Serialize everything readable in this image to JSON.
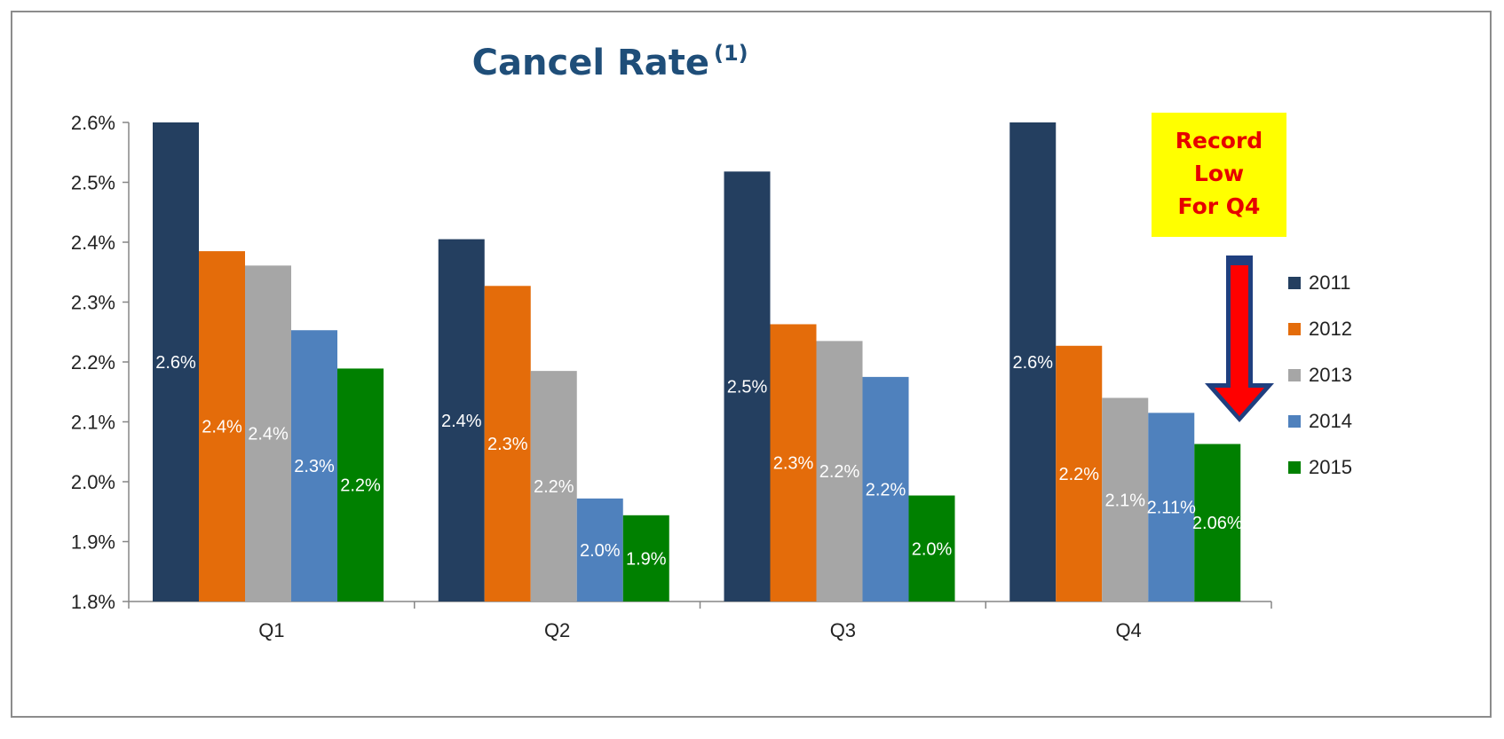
{
  "colors": {
    "title": "#1f4e79",
    "callout_bg": "#ffff00",
    "callout_text": "#e60000",
    "arrow_fill": "#ff0000",
    "arrow_outline": "#1f3f7f"
  },
  "callout": {
    "lines": [
      "Record",
      "Low",
      "For Q4"
    ]
  },
  "chart_data": {
    "type": "bar",
    "title": "Cancel Rate",
    "title_superscript": "(1)",
    "xlabel": "",
    "ylabel": "",
    "ylim": [
      1.8,
      2.6
    ],
    "yticks": [
      1.8,
      1.9,
      2.0,
      2.1,
      2.2,
      2.3,
      2.4,
      2.5,
      2.6
    ],
    "ytick_labels": [
      "1.8%",
      "1.9%",
      "2.0%",
      "2.1%",
      "2.2%",
      "2.3%",
      "2.4%",
      "2.5%",
      "2.6%"
    ],
    "categories": [
      "Q1",
      "Q2",
      "Q3",
      "Q4"
    ],
    "grid": false,
    "legend_position": "right",
    "series": [
      {
        "name": "2011",
        "color": "#243f60",
        "values": [
          2.6,
          2.405,
          2.518,
          2.6
        ],
        "labels": [
          "2.6%",
          "2.4%",
          "2.5%",
          "2.6%"
        ]
      },
      {
        "name": "2012",
        "color": "#e46c0a",
        "values": [
          2.385,
          2.327,
          2.263,
          2.227
        ],
        "labels": [
          "2.4%",
          "2.3%",
          "2.3%",
          "2.2%"
        ]
      },
      {
        "name": "2013",
        "color": "#a6a6a6",
        "values": [
          2.361,
          2.185,
          2.235,
          2.14
        ],
        "labels": [
          "2.4%",
          "2.2%",
          "2.2%",
          "2.1%"
        ]
      },
      {
        "name": "2014",
        "color": "#4f81bd",
        "values": [
          2.253,
          1.972,
          2.175,
          2.115
        ],
        "labels": [
          "2.3%",
          "2.0%",
          "2.2%",
          "2.11%"
        ]
      },
      {
        "name": "2015",
        "color": "#008000",
        "values": [
          2.189,
          1.944,
          1.977,
          2.063
        ],
        "labels": [
          "2.2%",
          "1.9%",
          "2.0%",
          "2.06%"
        ]
      }
    ]
  }
}
